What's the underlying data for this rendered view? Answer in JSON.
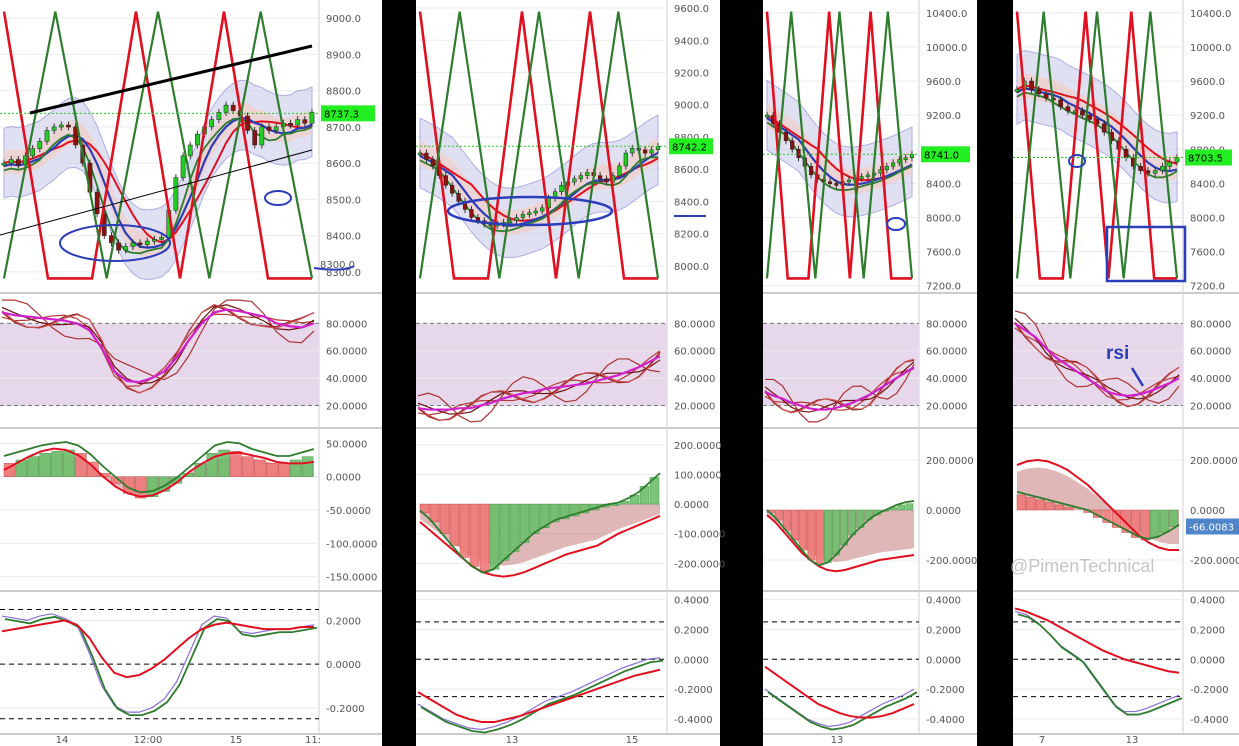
{
  "watermark": "@PimenTechnical",
  "colors": {
    "up": "#22cc22",
    "down": "#8b1010",
    "accent_blue": "#2b3db8",
    "red": "#e01020",
    "green": "#2e7d2e",
    "band_fill": "#c8c8ea",
    "rsi_zone": "#e7d7ea",
    "magenta": "#d020d0"
  },
  "chart_data": [
    {
      "type": "candlestick",
      "panel": "left",
      "x_ticks": [
        "14",
        "12:00",
        "15",
        "11:"
      ],
      "price_ticks": [
        9000.0,
        8900.0,
        8800.0,
        8700.0,
        8600.0,
        8500.0,
        8400.0,
        8300.0
      ],
      "price_ylim": [
        8250,
        9050
      ],
      "last_price_label": "8737.3",
      "last_price_value": 8737.3,
      "blue_annotation_label": "8300.0",
      "close": [
        8600,
        8610,
        8595,
        8620,
        8640,
        8660,
        8690,
        8700,
        8705,
        8700,
        8650,
        8600,
        8520,
        8460,
        8400,
        8380,
        8360,
        8370,
        8380,
        8375,
        8385,
        8390,
        8395,
        8470,
        8560,
        8620,
        8650,
        8680,
        8700,
        8720,
        8740,
        8760,
        8745,
        8730,
        8690,
        8650,
        8700,
        8690,
        8700,
        8710,
        8705,
        8720,
        8710,
        8740
      ],
      "stoch_ticks": [
        80.0,
        60.0,
        40.0,
        20.0
      ],
      "stoch_ylim": [
        5,
        100
      ],
      "stoch_magenta": [
        88,
        86,
        85,
        84,
        83,
        82,
        80,
        75,
        62,
        45,
        38,
        37,
        40,
        45,
        55,
        68,
        80,
        88,
        90,
        89,
        87,
        85,
        80,
        78,
        77,
        80
      ],
      "macd_ticks": [
        50.0,
        0.0,
        -50.0,
        -100.0,
        -150.0
      ],
      "macd_ylim": [
        -170,
        70
      ],
      "macd_hist": [
        20,
        25,
        30,
        35,
        38,
        40,
        35,
        22,
        5,
        -10,
        -25,
        -32,
        -30,
        -22,
        -10,
        5,
        20,
        35,
        40,
        38,
        30,
        25,
        20,
        20,
        25,
        30
      ],
      "macd_signal": [
        10,
        20,
        30,
        38,
        42,
        40,
        32,
        18,
        0,
        -15,
        -25,
        -30,
        -28,
        -20,
        -8,
        8,
        20,
        30,
        35,
        36,
        32,
        28,
        22,
        20,
        20,
        22
      ],
      "osc_ticks": [
        0.2,
        0.0,
        -0.2
      ],
      "osc_ylim": [
        -0.32,
        0.33
      ],
      "osc_fast": [
        0.22,
        0.21,
        0.2,
        0.22,
        0.23,
        0.21,
        0.18,
        0.05,
        -0.1,
        -0.19,
        -0.22,
        -0.22,
        -0.2,
        -0.16,
        -0.08,
        0.05,
        0.18,
        0.22,
        0.21,
        0.15,
        0.14,
        0.15,
        0.16,
        0.16,
        0.17,
        0.18
      ],
      "osc_slow": [
        0.15,
        0.16,
        0.17,
        0.18,
        0.19,
        0.2,
        0.18,
        0.12,
        0.03,
        -0.04,
        -0.06,
        -0.05,
        -0.02,
        0.02,
        0.07,
        0.12,
        0.16,
        0.18,
        0.19,
        0.18,
        0.17,
        0.16,
        0.16,
        0.16,
        0.17,
        0.17
      ]
    },
    {
      "type": "candlestick",
      "panel": "center-left",
      "x_ticks": [
        "13",
        "15"
      ],
      "price_ticks": [
        9600.0,
        9400.0,
        9200.0,
        9000.0,
        8800.0,
        8600.0,
        8400.0,
        8200.0,
        8000.0
      ],
      "price_ylim": [
        7850,
        9650
      ],
      "last_price_label": "8742.2",
      "last_price_value": 8742.2,
      "close": [
        8700,
        8660,
        8620,
        8560,
        8500,
        8450,
        8400,
        8350,
        8300,
        8280,
        8260,
        8250,
        8260,
        8270,
        8280,
        8300,
        8320,
        8330,
        8340,
        8360,
        8420,
        8460,
        8500,
        8520,
        8540,
        8560,
        8580,
        8560,
        8540,
        8520,
        8560,
        8620,
        8700,
        8730,
        8720,
        8700,
        8720,
        8742
      ],
      "stoch_ticks": [
        80.0,
        60.0,
        40.0,
        20.0
      ],
      "stoch_ylim": [
        5,
        100
      ],
      "stoch_magenta": [
        18,
        17,
        17,
        17,
        18,
        18,
        20,
        22,
        25,
        27,
        29,
        30,
        32,
        33,
        34,
        35,
        36,
        38,
        40,
        42,
        45,
        48,
        52,
        56
      ],
      "macd_ticks": [
        200.0,
        100.0,
        0.0,
        -100.0,
        -200.0
      ],
      "macd_ylim": [
        -290,
        250
      ],
      "macd_hist": [
        -30,
        -60,
        -100,
        -140,
        -180,
        -210,
        -230,
        -220,
        -190,
        -160,
        -130,
        -100,
        -80,
        -60,
        -50,
        -40,
        -30,
        -20,
        -10,
        -5,
        10,
        30,
        60,
        90
      ],
      "macd_signal": [
        -60,
        -90,
        -120,
        -150,
        -180,
        -210,
        -230,
        -240,
        -245,
        -240,
        -230,
        -215,
        -200,
        -185,
        -170,
        -160,
        -150,
        -140,
        -120,
        -100,
        -85,
        -70,
        -55,
        -40
      ],
      "osc_ticks": [
        0.4,
        0.2,
        0.0,
        -0.2,
        -0.4
      ],
      "osc_ylim": [
        -0.5,
        0.45
      ],
      "osc_fast": [
        -0.3,
        -0.35,
        -0.4,
        -0.43,
        -0.46,
        -0.47,
        -0.45,
        -0.42,
        -0.38,
        -0.33,
        -0.28,
        -0.25,
        -0.22,
        -0.18,
        -0.14,
        -0.1,
        -0.06,
        -0.03,
        0.0,
        0.01
      ],
      "osc_slow": [
        -0.22,
        -0.27,
        -0.32,
        -0.37,
        -0.4,
        -0.42,
        -0.42,
        -0.4,
        -0.38,
        -0.35,
        -0.32,
        -0.29,
        -0.26,
        -0.23,
        -0.2,
        -0.17,
        -0.14,
        -0.11,
        -0.09,
        -0.07
      ]
    },
    {
      "type": "candlestick",
      "panel": "center-right",
      "x_ticks": [
        "13"
      ],
      "price_ticks": [
        10400.0,
        10000.0,
        9600.0,
        9200.0,
        8800.0,
        8400.0,
        8000.0,
        7600.0,
        7200.0
      ],
      "price_ylim": [
        7150,
        10550
      ],
      "last_price_label": "8741.0",
      "last_price_value": 8741.0,
      "close": [
        9200,
        9100,
        9000,
        8900,
        8800,
        8700,
        8600,
        8500,
        8450,
        8420,
        8400,
        8380,
        8420,
        8440,
        8460,
        8480,
        8500,
        8520,
        8560,
        8600,
        8640,
        8680,
        8700,
        8741
      ],
      "stoch_ticks": [
        80.0,
        60.0,
        40.0,
        20.0
      ],
      "stoch_ylim": [
        5,
        100
      ],
      "stoch_magenta": [
        30,
        27,
        25,
        22,
        20,
        18,
        17,
        17,
        18,
        20,
        22,
        25,
        28,
        32,
        36,
        40,
        44,
        48
      ],
      "macd_ticks": [
        200.0,
        0.0,
        -200.0
      ],
      "macd_ylim": [
        -320,
        320
      ],
      "macd_hist": [
        -10,
        -40,
        -80,
        -120,
        -160,
        -200,
        -220,
        -210,
        -180,
        -140,
        -100,
        -70,
        -40,
        -20,
        -5,
        10,
        20,
        25
      ],
      "macd_signal": [
        -20,
        -50,
        -90,
        -130,
        -170,
        -200,
        -225,
        -240,
        -245,
        -240,
        -230,
        -220,
        -210,
        -200,
        -195,
        -190,
        -185,
        -180
      ],
      "osc_ticks": [
        0.4,
        0.2,
        0.0,
        -0.2,
        -0.4
      ],
      "osc_ylim": [
        -0.5,
        0.45
      ],
      "osc_fast": [
        -0.2,
        -0.25,
        -0.3,
        -0.35,
        -0.4,
        -0.43,
        -0.45,
        -0.44,
        -0.42,
        -0.38,
        -0.34,
        -0.3,
        -0.27,
        -0.24,
        -0.2
      ],
      "osc_slow": [
        -0.05,
        -0.1,
        -0.15,
        -0.2,
        -0.25,
        -0.3,
        -0.33,
        -0.36,
        -0.38,
        -0.39,
        -0.39,
        -0.38,
        -0.36,
        -0.33,
        -0.3
      ]
    },
    {
      "type": "candlestick",
      "panel": "right",
      "x_ticks": [
        "7",
        "13"
      ],
      "price_ticks": [
        10400.0,
        10000.0,
        9600.0,
        9200.0,
        8800.0,
        8400.0,
        8000.0,
        7600.0,
        7200.0
      ],
      "price_ylim": [
        7150,
        10550
      ],
      "last_price_label": "8703.5",
      "last_price_value": 8703.5,
      "annotation_text": "rsi",
      "macd_last_label": "-66.0083",
      "close": [
        9500,
        9600,
        9500,
        9450,
        9400,
        9380,
        9300,
        9250,
        9250,
        9200,
        9150,
        9100,
        9000,
        8900,
        8800,
        8700,
        8600,
        8550,
        8520,
        8550,
        8600,
        8650,
        8703
      ],
      "stoch_ticks": [
        80.0,
        60.0,
        40.0,
        20.0
      ],
      "stoch_ylim": [
        5,
        100
      ],
      "stoch_magenta": [
        80,
        75,
        70,
        62,
        55,
        50,
        45,
        40,
        35,
        30,
        28,
        27,
        28,
        30,
        33,
        36,
        40
      ],
      "macd_ticks": [
        200.0,
        0.0,
        -200.0
      ],
      "macd_ylim": [
        -320,
        320
      ],
      "macd_hist": [
        60,
        50,
        40,
        30,
        20,
        10,
        0,
        -10,
        -30,
        -50,
        -70,
        -90,
        -110,
        -120,
        -110,
        -90,
        -66
      ],
      "macd_signal": [
        180,
        195,
        200,
        195,
        180,
        160,
        130,
        100,
        60,
        20,
        -20,
        -60,
        -100,
        -130,
        -150,
        -160,
        -160
      ],
      "osc_ticks": [
        0.4,
        0.2,
        0.0,
        -0.2,
        -0.4
      ],
      "osc_ylim": [
        -0.5,
        0.45
      ],
      "osc_fast": [
        0.32,
        0.3,
        0.25,
        0.18,
        0.1,
        0.05,
        0.0,
        -0.1,
        -0.2,
        -0.3,
        -0.35,
        -0.35,
        -0.33,
        -0.3,
        -0.27,
        -0.24
      ],
      "osc_slow": [
        0.34,
        0.32,
        0.29,
        0.26,
        0.22,
        0.18,
        0.14,
        0.1,
        0.06,
        0.03,
        0.0,
        -0.02,
        -0.04,
        -0.06,
        -0.08,
        -0.09
      ]
    }
  ]
}
